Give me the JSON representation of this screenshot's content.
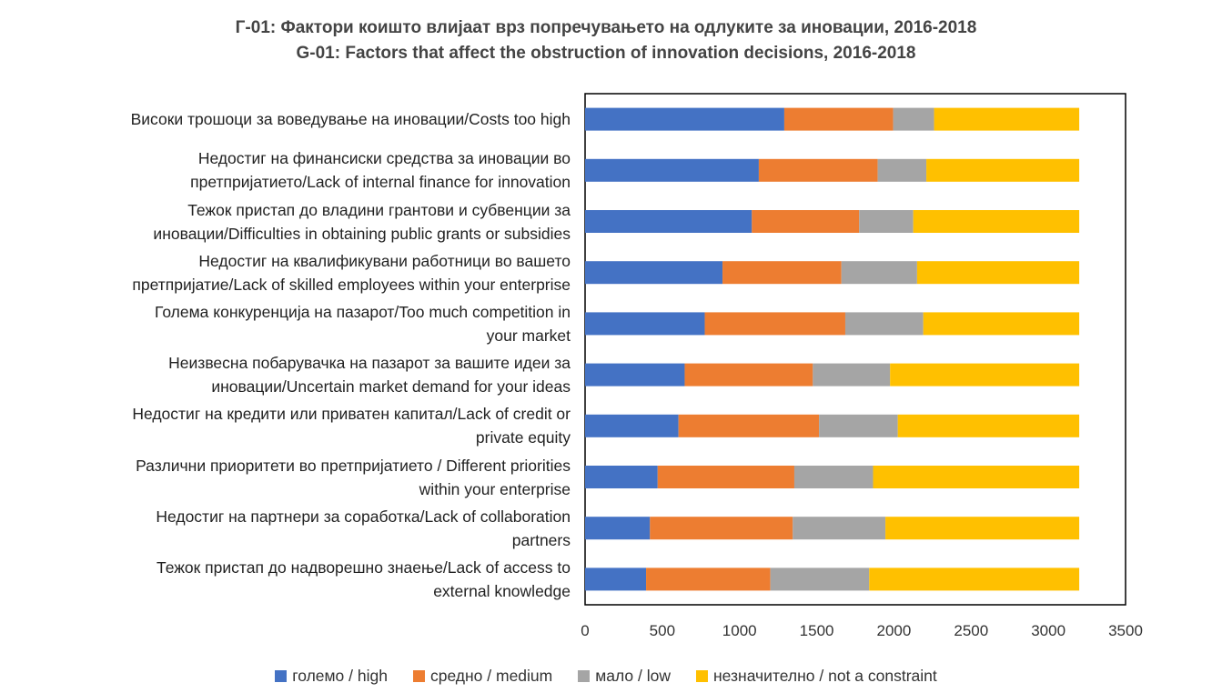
{
  "title_mk": "Г-01: Фактори коишто влијаат врз попречувањето на одлуките за иновации, 2016-2018",
  "title_en": "G-01: Factors that affect the obstruction of innovation decisions, 2016-2018",
  "chart_data": {
    "type": "bar",
    "orientation": "horizontal",
    "stacked": true,
    "categories": [
      [
        "Високи трошоци за воведување на иновации/Costs too high"
      ],
      [
        "Недостиг на финансиски средства за иновации во",
        "претпријатието/Lack of internal finance for innovation"
      ],
      [
        "Тежок пристап до владини грантови и субвенции за",
        "иновации/Difficulties in obtaining public grants or subsidies"
      ],
      [
        "Недостиг на квалификувани работници во вашето",
        "претпријатие/Lack of skilled employees within your enterprise"
      ],
      [
        "Голема конкуренција на пазарот/Too much competition in",
        "your market"
      ],
      [
        "Неизвесна побарувачка на пазарот за вашите идеи за",
        "иновации/Uncertain market demand for your ideas"
      ],
      [
        "Недостиг на кредити или приватен капитал/Lack of credit or",
        "private equity"
      ],
      [
        "Различни приоритети во претпријатието / Different priorities",
        "within your enterprise"
      ],
      [
        "Недостиг на партнери за соработка/Lack of collaboration",
        "partners"
      ],
      [
        "Тежок пристап до надворешно знаење/Lack of access to",
        "external knowledge"
      ]
    ],
    "series": [
      {
        "name": "големо / high",
        "color": "#4472C4",
        "values": [
          1290,
          1125,
          1080,
          890,
          775,
          645,
          605,
          470,
          420,
          395
        ]
      },
      {
        "name": "средно / medium",
        "color": "#ED7D31",
        "values": [
          705,
          770,
          695,
          770,
          910,
          830,
          910,
          885,
          925,
          805
        ]
      },
      {
        "name": "мало / low",
        "color": "#A5A5A5",
        "values": [
          265,
          315,
          350,
          490,
          505,
          500,
          510,
          510,
          600,
          640
        ]
      },
      {
        "name": "незначително / not a constraint",
        "color": "#FFC000",
        "values": [
          940,
          990,
          1075,
          1050,
          1010,
          1225,
          1175,
          1335,
          1255,
          1360
        ]
      }
    ],
    "xlim": [
      0,
      3500
    ],
    "xticks": [
      "0",
      "500",
      "1000",
      "1500",
      "2000",
      "2500",
      "3000",
      "3500"
    ],
    "grid": false,
    "legend_position": "bottom"
  }
}
